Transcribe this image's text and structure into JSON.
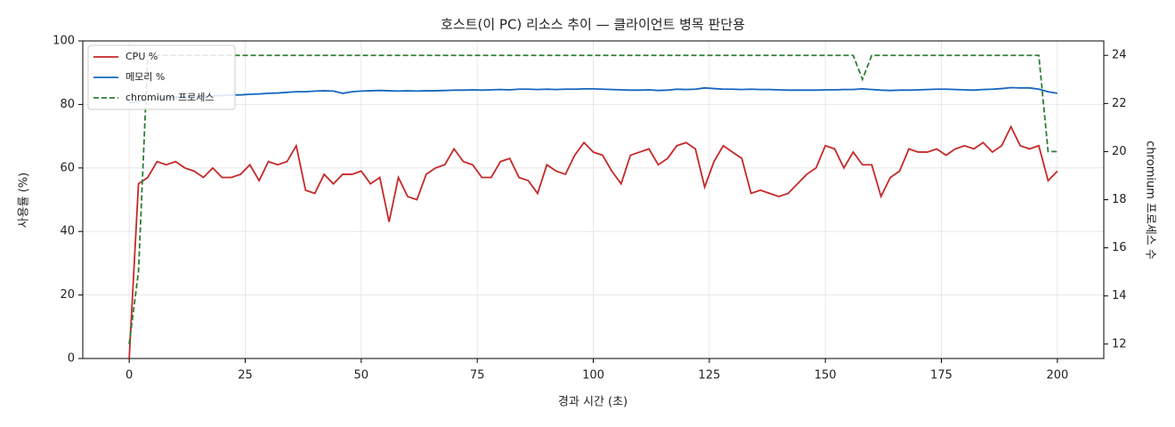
{
  "chart_data": {
    "type": "line",
    "title": "호스트(이 PC) 리소스 추이 — 클라이언트 병목 판단용",
    "x_label": "경과 시간 (초)",
    "y_label": "사용률 (%)",
    "y2_label": "chromium 프로세스 수",
    "x": [
      0,
      2,
      4,
      6,
      8,
      10,
      12,
      14,
      16,
      18,
      20,
      22,
      24,
      26,
      28,
      30,
      32,
      34,
      36,
      38,
      40,
      42,
      44,
      46,
      48,
      50,
      52,
      54,
      56,
      58,
      60,
      62,
      64,
      66,
      68,
      70,
      72,
      74,
      76,
      78,
      80,
      82,
      84,
      86,
      88,
      90,
      92,
      94,
      96,
      98,
      100,
      102,
      104,
      106,
      108,
      110,
      112,
      114,
      116,
      118,
      120,
      122,
      124,
      126,
      128,
      130,
      132,
      134,
      136,
      138,
      140,
      142,
      144,
      146,
      148,
      150,
      152,
      154,
      156,
      158,
      160,
      162,
      164,
      166,
      168,
      170,
      172,
      174,
      176,
      178,
      180,
      182,
      184,
      186,
      188,
      190,
      192,
      194,
      196,
      198,
      200
    ],
    "series": [
      {
        "name": "CPU %",
        "color": "#c62828",
        "linestyle": "solid",
        "values": [
          0,
          55,
          57,
          62,
          61,
          62,
          60,
          59,
          57,
          60,
          57,
          57,
          58,
          61,
          56,
          62,
          61,
          62,
          67,
          53,
          52,
          58,
          55,
          58,
          58,
          59,
          55,
          57,
          43,
          57,
          51,
          50,
          58,
          60,
          61,
          66,
          62,
          61,
          57,
          57,
          62,
          63,
          57,
          56,
          52,
          61,
          59,
          58,
          64,
          68,
          65,
          64,
          59,
          55,
          64,
          65,
          66,
          61,
          63,
          67,
          68,
          66,
          54,
          62,
          67,
          65,
          63,
          52,
          53,
          52,
          51,
          52,
          55,
          58,
          60,
          67,
          66,
          60,
          65,
          61,
          61,
          51,
          57,
          59,
          66,
          65,
          65,
          66,
          64,
          66,
          67,
          66,
          68,
          65,
          67,
          73,
          67,
          66,
          67,
          56,
          59
        ]
      },
      {
        "name": "메모리 %",
        "color": "#1565c0",
        "linestyle": "solid",
        "values": [
          80.5,
          81,
          81.5,
          82,
          82,
          82.3,
          82.5,
          82.5,
          82.6,
          82.7,
          82.8,
          83,
          83,
          83.2,
          83.3,
          83.5,
          83.6,
          83.8,
          84,
          84,
          84.2,
          84.3,
          84.2,
          83.5,
          84,
          84.2,
          84.3,
          84.4,
          84.3,
          84.2,
          84.3,
          84.2,
          84.3,
          84.3,
          84.4,
          84.5,
          84.5,
          84.6,
          84.5,
          84.6,
          84.7,
          84.6,
          84.8,
          84.8,
          84.7,
          84.8,
          84.7,
          84.8,
          84.8,
          84.9,
          84.9,
          84.8,
          84.7,
          84.6,
          84.5,
          84.5,
          84.6,
          84.4,
          84.5,
          84.8,
          84.7,
          84.8,
          85.2,
          85,
          84.8,
          84.8,
          84.7,
          84.8,
          84.7,
          84.7,
          84.6,
          84.5,
          84.5,
          84.5,
          84.5,
          84.6,
          84.6,
          84.7,
          84.7,
          84.9,
          84.7,
          84.5,
          84.4,
          84.5,
          84.5,
          84.6,
          84.7,
          84.8,
          84.8,
          84.7,
          84.6,
          84.5,
          84.7,
          84.8,
          85,
          85.3,
          85.2,
          85.2,
          84.8,
          84,
          83.5
        ]
      },
      {
        "name": "chromium 프로세스",
        "color": "#2e7d32",
        "linestyle": "dashed",
        "axis": "y2",
        "values": [
          12,
          15,
          24,
          24,
          24,
          24,
          24,
          24,
          24,
          24,
          24,
          24,
          24,
          24,
          24,
          24,
          24,
          24,
          24,
          24,
          24,
          24,
          24,
          24,
          24,
          24,
          24,
          24,
          24,
          24,
          24,
          24,
          24,
          24,
          24,
          24,
          24,
          24,
          24,
          24,
          24,
          24,
          24,
          24,
          24,
          24,
          24,
          24,
          24,
          24,
          24,
          24,
          24,
          24,
          24,
          24,
          24,
          24,
          24,
          24,
          24,
          24,
          24,
          24,
          24,
          24,
          24,
          24,
          24,
          24,
          24,
          24,
          24,
          24,
          24,
          24,
          24,
          24,
          24,
          23,
          24,
          24,
          24,
          24,
          24,
          24,
          24,
          24,
          24,
          24,
          24,
          24,
          24,
          24,
          24,
          24,
          24,
          24,
          24,
          20,
          20
        ]
      }
    ],
    "xlim": [
      -10,
      210
    ],
    "xticks": [
      0,
      25,
      50,
      75,
      100,
      125,
      150,
      175,
      200
    ],
    "ylim": [
      0,
      100
    ],
    "yticks": [
      0,
      20,
      40,
      60,
      80,
      100
    ],
    "y2lim": [
      11.4,
      24.6
    ],
    "y2ticks": [
      12,
      14,
      16,
      18,
      20,
      22,
      24
    ],
    "grid": true,
    "legend": "upper left"
  }
}
